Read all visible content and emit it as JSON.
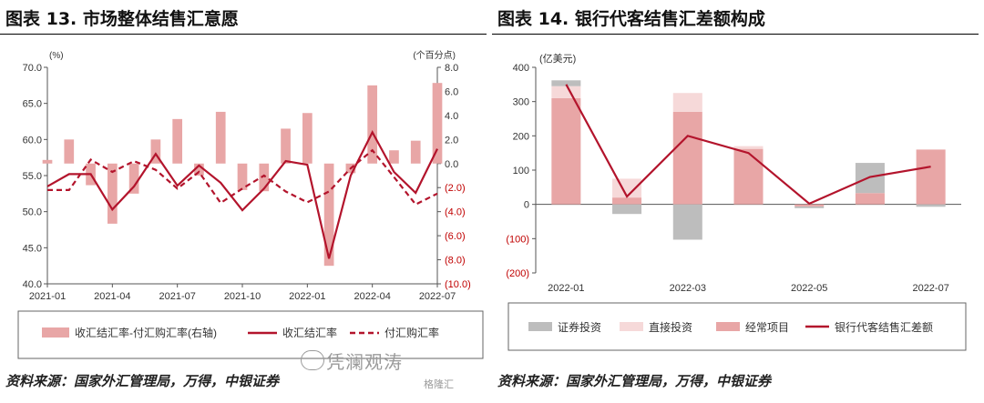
{
  "left": {
    "title": "图表 13. 市场整体结售汇意愿",
    "source": "资料来源：国家外汇管理局，万得，中银证券",
    "chart_data": {
      "type": "bar+line",
      "left_axis_unit": "(%)",
      "right_axis_unit": "(个百分点)",
      "left_ylim": [
        40,
        70
      ],
      "left_ticks": [
        "70.0",
        "65.0",
        "60.0",
        "55.0",
        "50.0",
        "45.0",
        "40.0"
      ],
      "right_ylim": [
        -10,
        8
      ],
      "right_ticks": [
        "8.0",
        "6.0",
        "4.0",
        "2.0",
        "0.0",
        "(2.0)",
        "(4.0)",
        "(6.0)",
        "(8.0)",
        "(10.0)"
      ],
      "x_tick_labels": [
        "2021-01",
        "2021-04",
        "2021-07",
        "2021-10",
        "2022-01",
        "2022-04",
        "2022-07"
      ],
      "months": [
        "2021-01",
        "2021-02",
        "2021-03",
        "2021-04",
        "2021-05",
        "2021-06",
        "2021-07",
        "2021-08",
        "2021-09",
        "2021-10",
        "2021-11",
        "2021-12",
        "2022-01",
        "2022-02",
        "2022-03",
        "2022-04",
        "2022-05",
        "2022-06",
        "2022-07"
      ],
      "series": [
        {
          "name": "收汇结汇率-付汇购汇率(右轴)",
          "axis": "right",
          "kind": "bar",
          "color": "#e8a6a6",
          "values": [
            0.3,
            2.0,
            -1.8,
            -5.0,
            -2.5,
            2.0,
            3.7,
            -1.0,
            4.3,
            -2.2,
            -2.3,
            2.9,
            4.2,
            -8.5,
            -0.8,
            6.5,
            1.1,
            1.9,
            6.7
          ]
        },
        {
          "name": "收汇结汇率",
          "axis": "left",
          "kind": "line",
          "color": "#b3142c",
          "style": "solid",
          "values": [
            53.5,
            55.2,
            55.2,
            50.3,
            53.5,
            58.0,
            53.6,
            56.4,
            54.0,
            50.2,
            53.2,
            57.0,
            56.5,
            43.5,
            55.0,
            61.0,
            55.5,
            52.6,
            58.7
          ]
        },
        {
          "name": "付汇购汇率",
          "axis": "left",
          "kind": "line",
          "color": "#b3142c",
          "style": "dashed",
          "values": [
            53.0,
            53.0,
            57.2,
            55.5,
            57.0,
            55.8,
            53.2,
            55.5,
            51.2,
            53.2,
            55.0,
            52.8,
            51.3,
            52.8,
            56.0,
            58.5,
            54.8,
            51.0,
            52.5
          ]
        }
      ]
    }
  },
  "right": {
    "title": "图表 14. 银行代客结售汇差额构成",
    "source": "资料来源：国家外汇管理局，万得，中银证券",
    "chart_data": {
      "type": "stacked-bar+line",
      "y_unit": "(亿美元)",
      "ylim": [
        -200,
        400
      ],
      "y_ticks": [
        "400",
        "300",
        "200",
        "100",
        "0",
        "(100)",
        "(200)"
      ],
      "categories": [
        "2022-01",
        "2022-02",
        "2022-03",
        "2022-04",
        "2022-05",
        "2022-06",
        "2022-07"
      ],
      "x_tick_labels": [
        "2022-01",
        "2022-03",
        "2022-05",
        "2022-07"
      ],
      "series": [
        {
          "name": "证券投资",
          "kind": "bar",
          "color": "#bdbdbd",
          "values": [
            17,
            -28,
            -103,
            0,
            -5,
            88,
            -7
          ]
        },
        {
          "name": "直接投资",
          "kind": "bar",
          "color": "#f6d9d9",
          "values": [
            35,
            55,
            55,
            8,
            0,
            0,
            0
          ]
        },
        {
          "name": "经常项目",
          "kind": "bar",
          "color": "#e8a6a6",
          "values": [
            310,
            20,
            270,
            162,
            -6,
            33,
            160
          ]
        },
        {
          "name": "银行代客结售汇差额",
          "kind": "line",
          "color": "#b3142c",
          "values": [
            350,
            23,
            200,
            150,
            2,
            80,
            110
          ]
        }
      ]
    }
  },
  "watermark": {
    "text": "凭澜观涛",
    "sub": "格隆汇"
  }
}
